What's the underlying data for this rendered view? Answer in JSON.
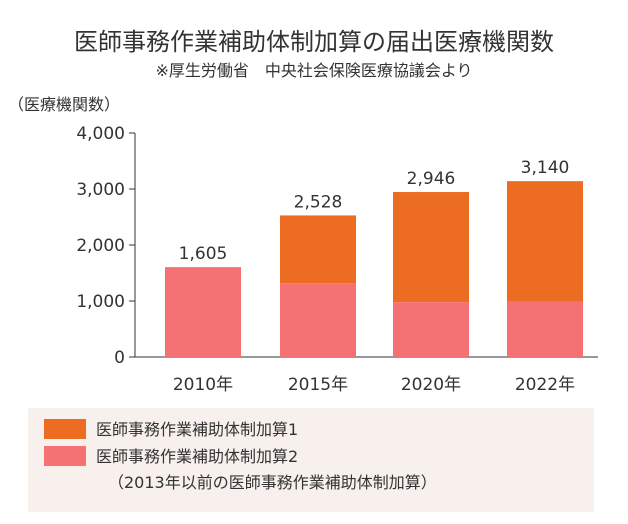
{
  "chart_data": {
    "type": "bar",
    "stacked": true,
    "title": "医師事務作業補助体制加算の届出医療機関数",
    "subtitle": "※厚生労働省　中央社会保険医療協議会より",
    "ylabel": "（医療機関数）",
    "xlabel": "",
    "ylim": [
      0,
      4000
    ],
    "yticks": [
      0,
      1000,
      2000,
      3000,
      4000
    ],
    "ytick_labels": [
      "0",
      "1,000",
      "2,000",
      "3,000",
      "4,000"
    ],
    "categories": [
      "2010年",
      "2015年",
      "2020年",
      "2022年"
    ],
    "series": [
      {
        "name": "医師事務作業補助体制加算2",
        "values": [
          1605,
          1320,
          980,
          990
        ],
        "color": "#f47174"
      },
      {
        "name": "医師事務作業補助体制加算1",
        "values": [
          0,
          1208,
          1966,
          2150
        ],
        "color": "#ec6d22"
      }
    ],
    "totals": [
      1605,
      2528,
      2946,
      3140
    ],
    "total_labels": [
      "1,605",
      "2,528",
      "2,946",
      "3,140"
    ],
    "legend": {
      "position": "bottom",
      "background": "#f7f0ec",
      "items": [
        {
          "label": "医師事務作業補助体制加算1",
          "color": "#ec6d22"
        },
        {
          "label": "医師事務作業補助体制加算2",
          "color": "#f47174"
        }
      ],
      "note": "（2013年以前の医師事務作業補助体制加算）"
    }
  }
}
